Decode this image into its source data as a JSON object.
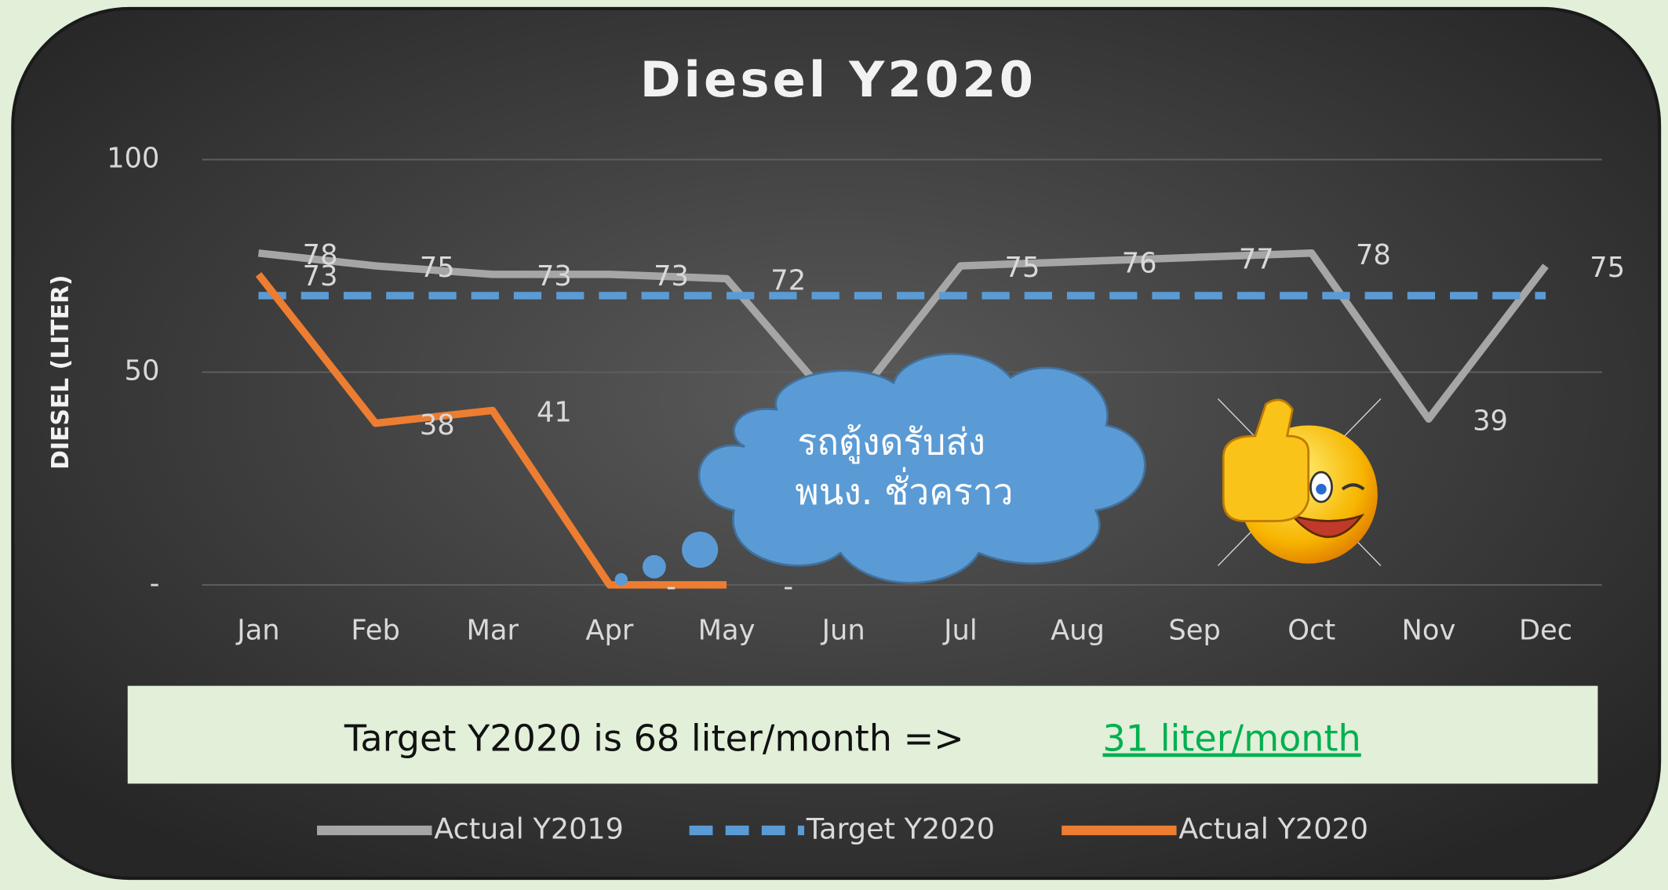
{
  "chart_data": {
    "type": "line",
    "title": "Diesel Y2020",
    "y_label": "DIESEL (LITER)",
    "categories": [
      "Jan",
      "Feb",
      "Mar",
      "Apr",
      "May",
      "Jun",
      "Jul",
      "Aug",
      "Sep",
      "Oct",
      "Nov",
      "Dec"
    ],
    "series": [
      {
        "name": "Actual Y2019",
        "color": "#a6a6a6",
        "style": "solid",
        "values": [
          78,
          75,
          73,
          73,
          72,
          40,
          75,
          76,
          77,
          78,
          39,
          75
        ],
        "value_labels": [
          "78",
          "75",
          "73",
          "73",
          "72",
          null,
          "75",
          "76",
          "77",
          "78",
          "39",
          "75"
        ]
      },
      {
        "name": "Target Y2020",
        "color": "#5b9bd5",
        "style": "dashed",
        "values": [
          68,
          68,
          68,
          68,
          68,
          68,
          68,
          68,
          68,
          68,
          68,
          68
        ]
      },
      {
        "name": "Actual Y2020",
        "color": "#ed7d31",
        "style": "solid",
        "values": [
          73,
          38,
          41,
          0,
          0,
          null,
          null,
          null,
          null,
          null,
          null,
          null
        ],
        "value_labels": [
          "73",
          "38",
          "41",
          "-",
          "-",
          null,
          null,
          null,
          null,
          null,
          null,
          null
        ]
      }
    ],
    "ylim": [
      0,
      100
    ],
    "yticks": [
      {
        "value": 0,
        "label": "-"
      },
      50,
      100
    ],
    "grid": true,
    "legend": "bottom",
    "annotation": [
      "รถตู้งดรับส่ง",
      "พนง. ชั่วคราว"
    ],
    "note": {
      "text": "Target Y2020 is 68 liter/month =>",
      "link": "31 liter/month"
    }
  }
}
